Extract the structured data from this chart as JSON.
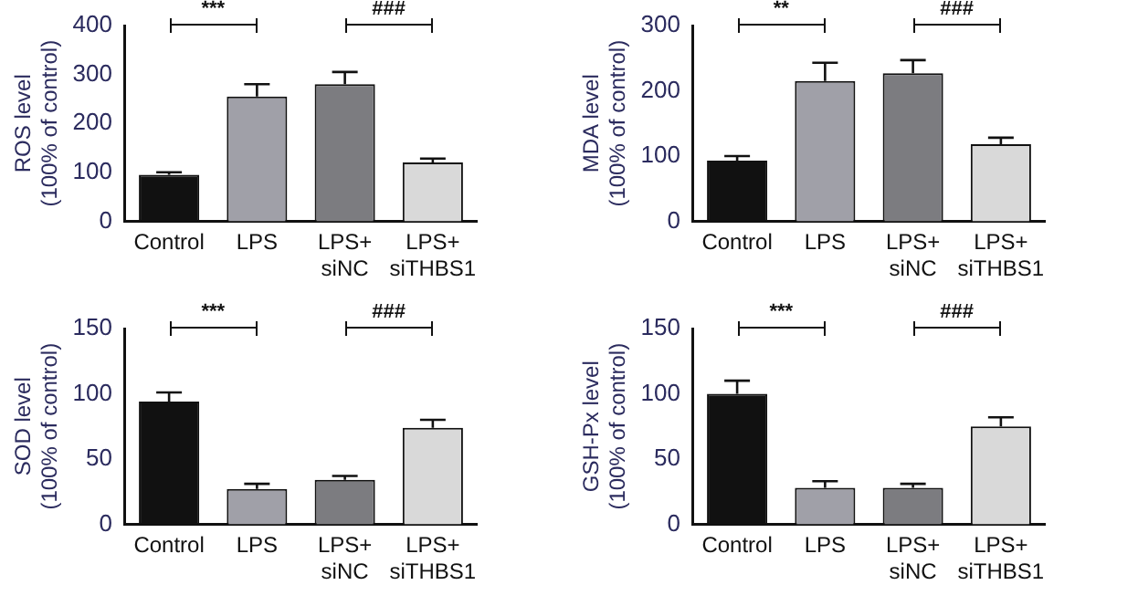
{
  "chart_data": [
    {
      "type": "bar",
      "ylabel": "ROS level\n(100% of control)",
      "categories": [
        "Control",
        "LPS",
        "LPS+\nsiNC",
        "LPS+\nsiTHBS1"
      ],
      "values": [
        95,
        255,
        280,
        120
      ],
      "errors": [
        5,
        25,
        25,
        8
      ],
      "colors": [
        "#111111",
        "#a0a0a8",
        "#7c7c80",
        "#d9d9d9"
      ],
      "ylim": [
        0,
        400
      ],
      "yticks": [
        0,
        100,
        200,
        300,
        400
      ],
      "annotations": [
        "***",
        "###"
      ]
    },
    {
      "type": "bar",
      "ylabel": "MDA level\n(100% of control)",
      "categories": [
        "Control",
        "LPS",
        "LPS+\nsiNC",
        "LPS+\nsiTHBS1"
      ],
      "values": [
        93,
        215,
        227,
        118
      ],
      "errors": [
        7,
        28,
        20,
        10
      ],
      "colors": [
        "#111111",
        "#a0a0a8",
        "#7c7c80",
        "#d9d9d9"
      ],
      "ylim": [
        0,
        300
      ],
      "yticks": [
        0,
        100,
        200,
        300
      ],
      "annotations": [
        "**",
        "###"
      ]
    },
    {
      "type": "bar",
      "ylabel": "SOD level\n(100% of control)",
      "categories": [
        "Control",
        "LPS",
        "LPS+\nsiNC",
        "LPS+\nsiTHBS1"
      ],
      "values": [
        94,
        27,
        34,
        74
      ],
      "errors": [
        7,
        4,
        3,
        6
      ],
      "colors": [
        "#111111",
        "#a0a0a8",
        "#7c7c80",
        "#d9d9d9"
      ],
      "ylim": [
        0,
        150
      ],
      "yticks": [
        0,
        50,
        100,
        150
      ],
      "annotations": [
        "***",
        "###"
      ]
    },
    {
      "type": "bar",
      "ylabel": "GSH-Px level\n(100% of control)",
      "categories": [
        "Control",
        "LPS",
        "LPS+\nsiNC",
        "LPS+\nsiTHBS1"
      ],
      "values": [
        100,
        28,
        28,
        75
      ],
      "errors": [
        10,
        5,
        3,
        7
      ],
      "colors": [
        "#111111",
        "#a0a0a8",
        "#7c7c80",
        "#d9d9d9"
      ],
      "ylim": [
        0,
        150
      ],
      "yticks": [
        0,
        50,
        100,
        150
      ],
      "annotations": [
        "***",
        "###"
      ]
    }
  ]
}
